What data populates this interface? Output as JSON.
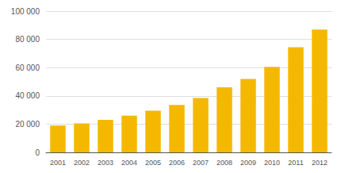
{
  "chart_data": {
    "type": "bar",
    "categories": [
      "2001",
      "2002",
      "2003",
      "2004",
      "2005",
      "2006",
      "2007",
      "2008",
      "2009",
      "2010",
      "2011",
      "2012"
    ],
    "values": [
      19000,
      20500,
      23000,
      26000,
      29500,
      33500,
      38500,
      46000,
      52000,
      60500,
      74500,
      87000
    ],
    "color": "#F5B800",
    "ylim": [
      0,
      100000
    ],
    "yticks": [
      0,
      {
        "value": 20000,
        "label": "20 000"
      },
      {
        "value": 40000,
        "label": "40 000"
      },
      {
        "value": 60000,
        "label": "60 000"
      },
      {
        "value": 80000,
        "label": "80 000"
      },
      {
        "value": 100000,
        "label": "100 000"
      }
    ],
    "grid": true
  }
}
